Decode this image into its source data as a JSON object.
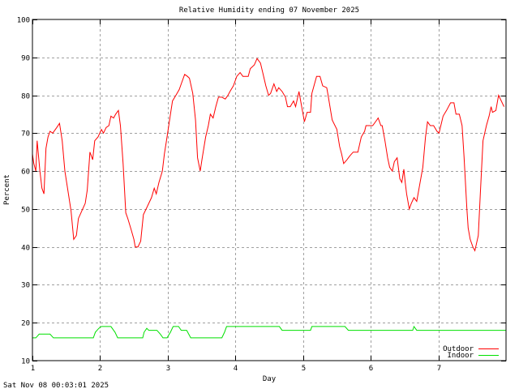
{
  "chart_data": {
    "type": "line",
    "title": "Relative Humidity ending 07 November 2025",
    "xlabel": "Day",
    "ylabel": "Percent",
    "footer": "Sat Nov 08 00:03:01 2025",
    "xlim": [
      1,
      8
    ],
    "ylim": [
      10,
      100
    ],
    "x_ticks": [
      1,
      2,
      3,
      4,
      5,
      6,
      7
    ],
    "y_ticks": [
      10,
      20,
      30,
      40,
      50,
      60,
      70,
      80,
      90,
      100
    ],
    "grid": true,
    "legend_position": "lower right",
    "series": [
      {
        "name": "Outdoor",
        "color": "#ff0000",
        "points": [
          [
            1.0,
            64.5
          ],
          [
            1.02,
            62
          ],
          [
            1.05,
            60
          ],
          [
            1.07,
            68
          ],
          [
            1.11,
            60
          ],
          [
            1.14,
            55.5
          ],
          [
            1.17,
            54
          ],
          [
            1.2,
            66
          ],
          [
            1.23,
            69
          ],
          [
            1.26,
            70.5
          ],
          [
            1.3,
            70
          ],
          [
            1.36,
            71.5
          ],
          [
            1.4,
            72.6
          ],
          [
            1.44,
            68
          ],
          [
            1.48,
            60
          ],
          [
            1.54,
            53
          ],
          [
            1.57,
            49.5
          ],
          [
            1.61,
            42
          ],
          [
            1.65,
            43
          ],
          [
            1.68,
            47.5
          ],
          [
            1.73,
            49.5
          ],
          [
            1.78,
            51.5
          ],
          [
            1.81,
            55
          ],
          [
            1.85,
            65
          ],
          [
            1.89,
            63
          ],
          [
            1.92,
            68
          ],
          [
            1.97,
            69
          ],
          [
            2.02,
            71
          ],
          [
            2.05,
            70
          ],
          [
            2.09,
            71.5
          ],
          [
            2.13,
            72
          ],
          [
            2.16,
            74.5
          ],
          [
            2.2,
            74
          ],
          [
            2.23,
            75
          ],
          [
            2.27,
            76
          ],
          [
            2.3,
            72
          ],
          [
            2.34,
            62
          ],
          [
            2.38,
            49
          ],
          [
            2.41,
            47.5
          ],
          [
            2.46,
            44.5
          ],
          [
            2.5,
            42
          ],
          [
            2.52,
            40
          ],
          [
            2.56,
            40
          ],
          [
            2.6,
            41.5
          ],
          [
            2.64,
            48.5
          ],
          [
            2.68,
            50
          ],
          [
            2.72,
            51.5
          ],
          [
            2.76,
            53
          ],
          [
            2.8,
            55.5
          ],
          [
            2.83,
            54
          ],
          [
            2.87,
            57
          ],
          [
            2.92,
            60
          ],
          [
            2.95,
            64.5
          ],
          [
            2.99,
            69
          ],
          [
            3.04,
            75
          ],
          [
            3.07,
            78.5
          ],
          [
            3.12,
            80
          ],
          [
            3.17,
            81.5
          ],
          [
            3.2,
            83
          ],
          [
            3.25,
            85.5
          ],
          [
            3.29,
            85
          ],
          [
            3.32,
            84.5
          ],
          [
            3.37,
            80.5
          ],
          [
            3.41,
            73.5
          ],
          [
            3.44,
            63.5
          ],
          [
            3.48,
            60
          ],
          [
            3.51,
            63.5
          ],
          [
            3.56,
            69
          ],
          [
            3.6,
            72
          ],
          [
            3.63,
            75
          ],
          [
            3.67,
            74
          ],
          [
            3.71,
            77
          ],
          [
            3.75,
            79.5
          ],
          [
            3.8,
            79.5
          ],
          [
            3.85,
            79
          ],
          [
            3.89,
            80
          ],
          [
            3.92,
            81
          ],
          [
            3.97,
            82.5
          ],
          [
            4.02,
            85
          ],
          [
            4.07,
            86
          ],
          [
            4.11,
            85
          ],
          [
            4.19,
            85
          ],
          [
            4.22,
            87
          ],
          [
            4.28,
            88
          ],
          [
            4.32,
            89.7
          ],
          [
            4.37,
            88.5
          ],
          [
            4.41,
            85.5
          ],
          [
            4.45,
            82.5
          ],
          [
            4.49,
            80
          ],
          [
            4.52,
            80.5
          ],
          [
            4.57,
            83
          ],
          [
            4.61,
            81
          ],
          [
            4.64,
            82
          ],
          [
            4.69,
            81
          ],
          [
            4.74,
            79.5
          ],
          [
            4.77,
            77
          ],
          [
            4.81,
            77
          ],
          [
            4.86,
            78.5
          ],
          [
            4.89,
            77
          ],
          [
            4.94,
            81
          ],
          [
            4.98,
            77
          ],
          [
            5.02,
            73
          ],
          [
            5.06,
            75.5
          ],
          [
            5.11,
            75.5
          ],
          [
            5.13,
            80.5
          ],
          [
            5.2,
            85
          ],
          [
            5.25,
            85
          ],
          [
            5.29,
            82.5
          ],
          [
            5.35,
            82
          ],
          [
            5.37,
            80
          ],
          [
            5.43,
            73.5
          ],
          [
            5.5,
            71
          ],
          [
            5.54,
            66.5
          ],
          [
            5.57,
            64.5
          ],
          [
            5.6,
            62
          ],
          [
            5.65,
            63
          ],
          [
            5.69,
            64
          ],
          [
            5.74,
            65
          ],
          [
            5.81,
            65
          ],
          [
            5.86,
            69
          ],
          [
            5.91,
            70.5
          ],
          [
            5.93,
            72
          ],
          [
            6.03,
            72
          ],
          [
            6.09,
            73.5
          ],
          [
            6.11,
            74
          ],
          [
            6.15,
            72
          ],
          [
            6.17,
            72
          ],
          [
            6.21,
            68
          ],
          [
            6.25,
            63.5
          ],
          [
            6.28,
            61
          ],
          [
            6.32,
            60
          ],
          [
            6.35,
            62.5
          ],
          [
            6.39,
            63.5
          ],
          [
            6.43,
            58
          ],
          [
            6.46,
            57
          ],
          [
            6.49,
            60.5
          ],
          [
            6.51,
            57
          ],
          [
            6.53,
            54
          ],
          [
            6.57,
            50
          ],
          [
            6.6,
            51.5
          ],
          [
            6.64,
            53
          ],
          [
            6.68,
            52
          ],
          [
            6.72,
            56
          ],
          [
            6.77,
            61
          ],
          [
            6.81,
            69
          ],
          [
            6.84,
            73
          ],
          [
            6.88,
            72
          ],
          [
            6.93,
            72
          ],
          [
            6.98,
            70.5
          ],
          [
            7.01,
            70
          ],
          [
            7.07,
            74.5
          ],
          [
            7.12,
            76
          ],
          [
            7.18,
            78
          ],
          [
            7.23,
            78
          ],
          [
            7.26,
            75
          ],
          [
            7.31,
            75
          ],
          [
            7.35,
            72
          ],
          [
            7.38,
            63.5
          ],
          [
            7.42,
            50.5
          ],
          [
            7.44,
            45
          ],
          [
            7.47,
            42
          ],
          [
            7.51,
            40
          ],
          [
            7.54,
            39
          ],
          [
            7.59,
            43
          ],
          [
            7.62,
            54
          ],
          [
            7.66,
            68
          ],
          [
            7.71,
            72
          ],
          [
            7.75,
            74.5
          ],
          [
            7.78,
            77
          ],
          [
            7.8,
            75.5
          ],
          [
            7.85,
            76
          ],
          [
            7.89,
            80
          ],
          [
            7.93,
            78.5
          ],
          [
            7.97,
            77
          ]
        ]
      },
      {
        "name": "Indoor",
        "color": "#00e000",
        "points": [
          [
            1.0,
            16
          ],
          [
            1.05,
            16
          ],
          [
            1.1,
            17
          ],
          [
            1.12,
            17
          ],
          [
            1.26,
            17
          ],
          [
            1.31,
            16
          ],
          [
            1.9,
            16
          ],
          [
            1.93,
            17.5
          ],
          [
            1.98,
            18.5
          ],
          [
            2.02,
            19
          ],
          [
            2.16,
            19
          ],
          [
            2.22,
            17.5
          ],
          [
            2.26,
            16
          ],
          [
            2.63,
            16
          ],
          [
            2.65,
            17.5
          ],
          [
            2.69,
            18.5
          ],
          [
            2.72,
            18
          ],
          [
            2.84,
            18
          ],
          [
            2.89,
            17
          ],
          [
            2.93,
            16
          ],
          [
            2.99,
            16
          ],
          [
            3.04,
            17.5
          ],
          [
            3.08,
            19
          ],
          [
            3.16,
            19
          ],
          [
            3.2,
            18
          ],
          [
            3.28,
            18
          ],
          [
            3.34,
            16
          ],
          [
            3.8,
            16
          ],
          [
            3.84,
            17.5
          ],
          [
            3.87,
            19
          ],
          [
            4.65,
            19
          ],
          [
            4.69,
            18
          ],
          [
            5.11,
            18
          ],
          [
            5.13,
            19
          ],
          [
            5.62,
            19
          ],
          [
            5.67,
            18
          ],
          [
            6.62,
            18
          ],
          [
            6.64,
            19
          ],
          [
            6.68,
            18
          ],
          [
            8.0,
            18
          ]
        ]
      }
    ]
  }
}
